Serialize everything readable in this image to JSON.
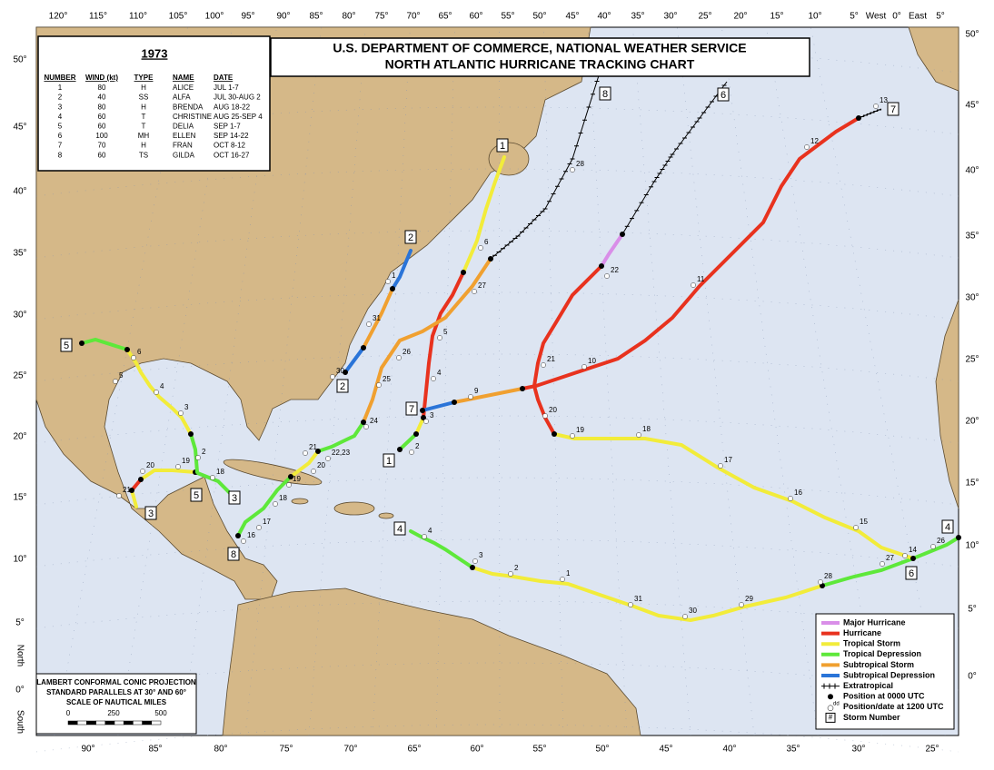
{
  "title": {
    "line1": "U.S. DEPARTMENT OF COMMERCE, NATIONAL WEATHER SERVICE",
    "line2": "NORTH ATLANTIC HURRICANE TRACKING CHART"
  },
  "storm_table": {
    "year": "1973",
    "headers": [
      "NUMBER",
      "WIND (kt)",
      "TYPE",
      "NAME",
      "DATE"
    ],
    "rows": [
      [
        "1",
        "80",
        "H",
        "ALICE",
        "JUL 1-7"
      ],
      [
        "2",
        "40",
        "SS",
        "ALFA",
        "JUL 30-AUG 2"
      ],
      [
        "3",
        "80",
        "H",
        "BRENDA",
        "AUG 18-22"
      ],
      [
        "4",
        "60",
        "T",
        "CHRISTINE",
        "AUG 25-SEP 4"
      ],
      [
        "5",
        "60",
        "T",
        "DELIA",
        "SEP 1-7"
      ],
      [
        "6",
        "100",
        "MH",
        "ELLEN",
        "SEP 14-22"
      ],
      [
        "7",
        "70",
        "H",
        "FRAN",
        "OCT 8-12"
      ],
      [
        "8",
        "60",
        "TS",
        "GILDA",
        "OCT 16-27"
      ]
    ]
  },
  "legend": {
    "items": [
      {
        "name": "Major Hurricane",
        "color": "#d98ee8"
      },
      {
        "name": "Hurricane",
        "color": "#e8321e"
      },
      {
        "name": "Tropical Storm",
        "color": "#f2ec3a"
      },
      {
        "name": "Tropical Depression",
        "color": "#5ee83a"
      },
      {
        "name": "Subtropical Storm",
        "color": "#f0a030"
      },
      {
        "name": "Subtropical Depression",
        "color": "#2a74d8"
      },
      {
        "name": "Extratropical",
        "color": "#000000"
      },
      {
        "name": "Position at 0000 UTC"
      },
      {
        "name": "Position/date at 1200 UTC",
        "sample": "dd"
      },
      {
        "name": "Storm Number",
        "sample": "#"
      }
    ]
  },
  "projection": {
    "lines": [
      "LAMBERT CONFORMAL CONIC PROJECTION",
      "STANDARD PARALLELS AT 30° AND 60°",
      "SCALE OF NAUTICAL MILES"
    ],
    "scale_ticks": [
      "0",
      "250",
      "500"
    ]
  },
  "top_longitudes": [
    "120°",
    "115°",
    "110°",
    "105°",
    "100°",
    "95°",
    "90°",
    "85°",
    "80°",
    "75°",
    "70°",
    "65°",
    "60°",
    "55°",
    "50°",
    "45°",
    "40°",
    "35°",
    "30°",
    "25°",
    "20°",
    "15°",
    "10°",
    "5°",
    "West",
    "0°",
    "East",
    "5°"
  ],
  "bottom_longitudes": [
    "90°",
    "85°",
    "80°",
    "75°",
    "70°",
    "65°",
    "60°",
    "55°",
    "50°",
    "45°",
    "40°",
    "35°",
    "30°",
    "25°"
  ],
  "left_latitudes": [
    "50°",
    "45°",
    "40°",
    "35°",
    "30°",
    "25°",
    "20°",
    "15°",
    "10°",
    "5°",
    "0°"
  ],
  "right_latitudes": [
    "50°",
    "45°",
    "40°",
    "35°",
    "30°",
    "25°",
    "20°",
    "15°",
    "10°",
    "5°",
    "0°"
  ],
  "hemisphere": {
    "north": "North",
    "south": "South"
  },
  "tracks": [
    {
      "boxes": [
        "1",
        "1"
      ],
      "labels": [
        "2",
        "3",
        "4",
        "5",
        "6"
      ]
    },
    {
      "boxes": [
        "2",
        "2"
      ],
      "labels": [
        "30",
        "31",
        "1"
      ]
    },
    {
      "boxes": [
        "3",
        "3"
      ],
      "labels": [
        "18",
        "19",
        "20",
        "21"
      ]
    },
    {
      "boxes": [
        "4",
        "4"
      ],
      "labels": [
        "26",
        "27",
        "28",
        "29",
        "30",
        "31",
        "1",
        "2",
        "3",
        "4"
      ]
    },
    {
      "boxes": [
        "5",
        "5"
      ],
      "labels": [
        "6",
        "5",
        "4",
        "3",
        "2"
      ]
    },
    {
      "boxes": [
        "6",
        "6"
      ],
      "labels": [
        "14",
        "15",
        "16",
        "17",
        "18",
        "19",
        "20",
        "21",
        "22"
      ]
    },
    {
      "boxes": [
        "7",
        "7"
      ],
      "labels": [
        "9",
        "10",
        "11",
        "12",
        "13"
      ]
    },
    {
      "boxes": [
        "8",
        "8"
      ],
      "labels": [
        "16",
        "17",
        "18",
        "19",
        "20",
        "21",
        "22,23",
        "24",
        "25",
        "26",
        "27",
        "28"
      ]
    }
  ]
}
